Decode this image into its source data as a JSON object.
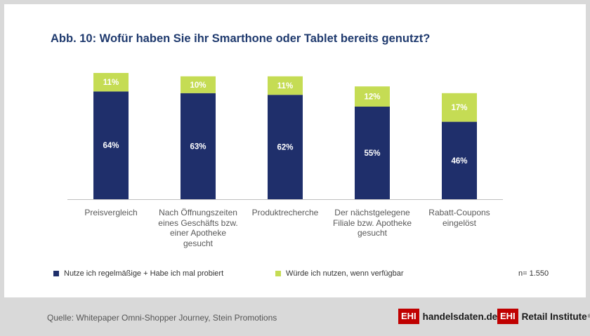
{
  "chart_data": {
    "type": "bar",
    "stacked": true,
    "title": "Abb. 10: Wofür haben Sie ihr Smarthone oder Tablet bereits genutzt?",
    "categories": [
      "Preisvergleich",
      "Nach Öffnungszeiten eines Geschäfts bzw. einer Apotheke gesucht",
      "Produktrecherche",
      "Der nächstgelegene Filiale bzw. Apotheke gesucht",
      "Rabatt-Coupons eingelöst"
    ],
    "series": [
      {
        "name": "Nutze ich regelmäßige + Habe ich mal probiert",
        "color": "#1f2f6b",
        "values": [
          64,
          63,
          62,
          55,
          46
        ],
        "labels": [
          "64%",
          "63%",
          "62%",
          "55%",
          "46%"
        ]
      },
      {
        "name": "Würde ich nutzen, wenn verfügbar",
        "color": "#c5dc54",
        "values": [
          11,
          10,
          11,
          12,
          17
        ],
        "labels": [
          "11%",
          "10%",
          "11%",
          "12%",
          "17%"
        ]
      }
    ],
    "xlabel": "",
    "ylabel": "",
    "ylim": [
      0,
      80
    ],
    "legend_position": "bottom-left",
    "grid": false
  },
  "n_label": "n= 1.550",
  "footer": {
    "source": "Quelle: Whitepaper Omni-Shopper Journey, Stein Promotions",
    "logo1_box": "EHI",
    "logo1_text": "handelsdaten.de",
    "logo2_box": "EHI",
    "logo2_text": "Retail Institute",
    "logo2_reg": "®"
  },
  "colors": {
    "title": "#1f3a6e",
    "axis": "#bfbfbf",
    "label_dark": "#ffffff",
    "label_light": "#ffffff"
  }
}
